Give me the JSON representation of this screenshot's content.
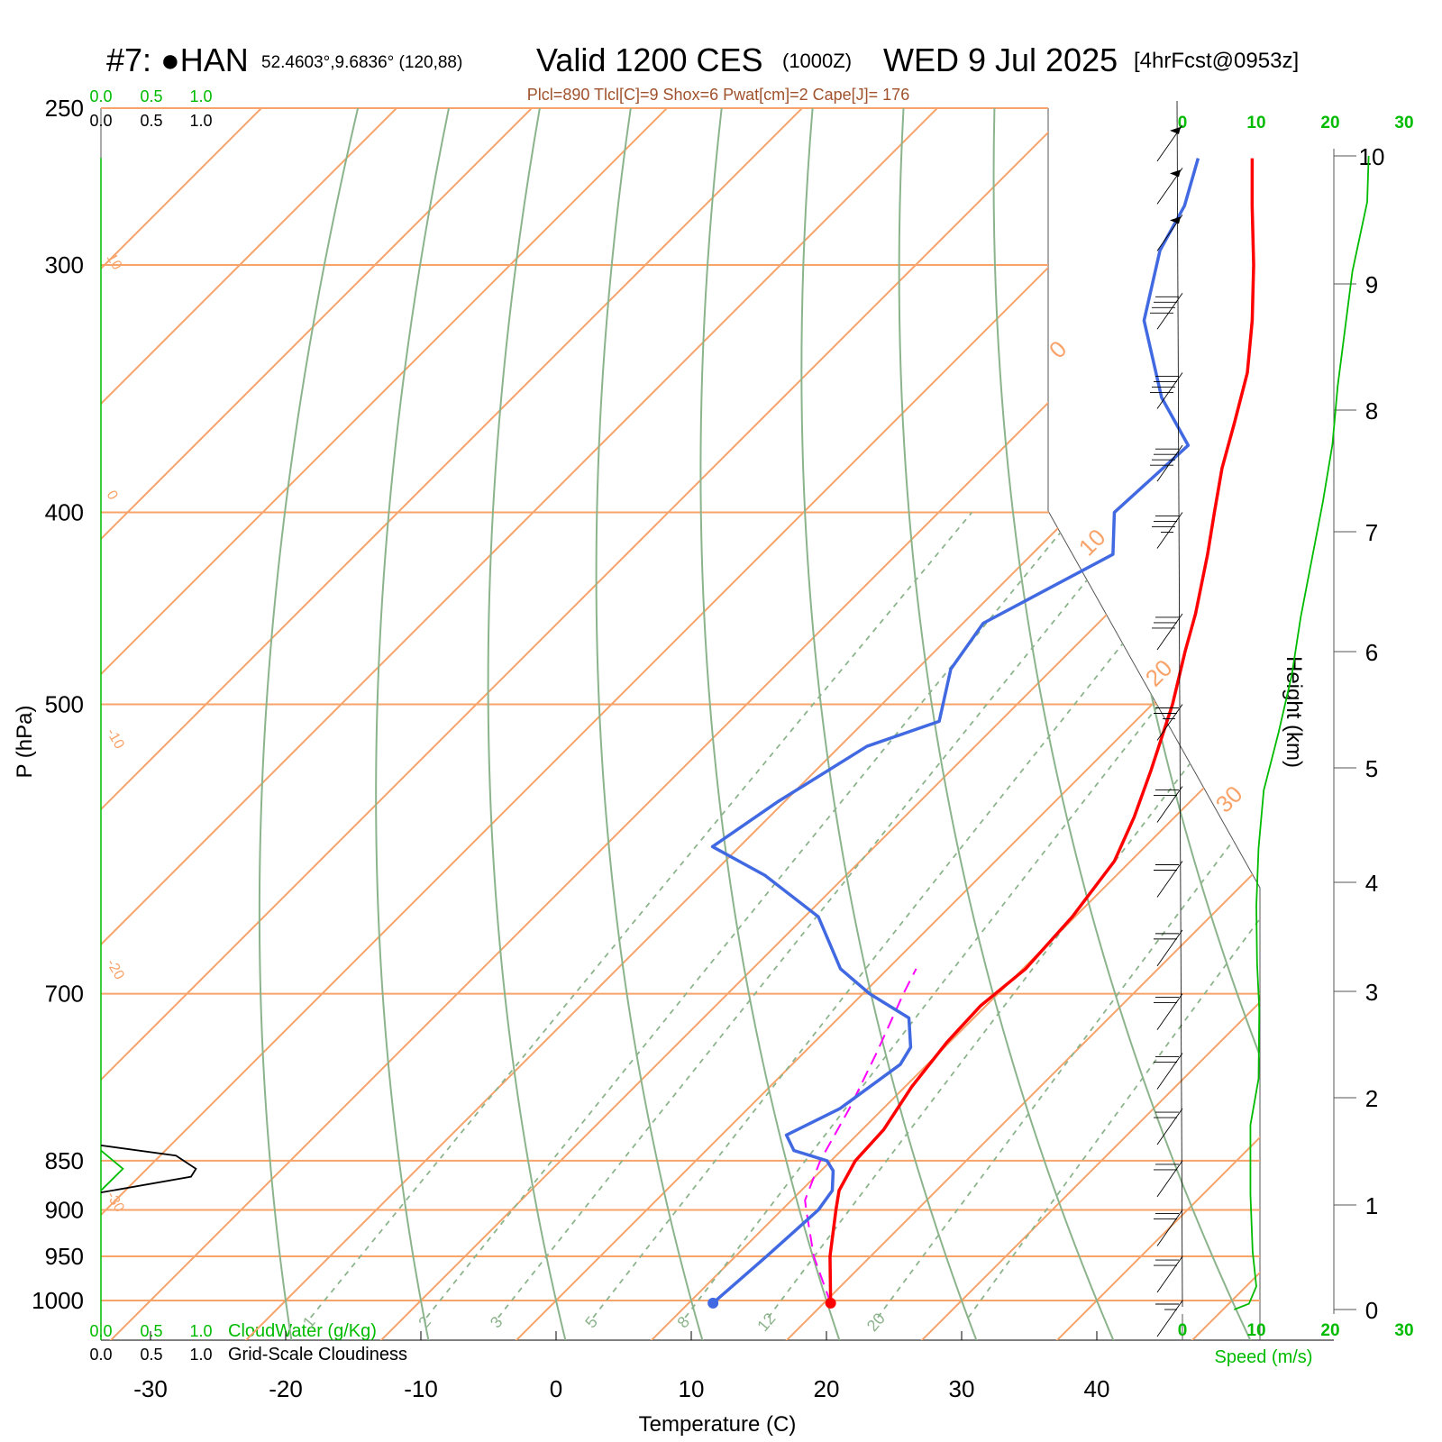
{
  "header": {
    "station": "#7: ●HAN",
    "coords": "52.4603°,9.6836° (120,88)",
    "valid": "Valid 1200 CES",
    "zulu": "(1000Z)",
    "date": "WED 9 Jul 2025",
    "forecast": "[4hrFcst@0953z]",
    "indices": "Plcl=890 Tlcl[C]=9 Shox=6 Pwat[cm]=2 Cape[J]= 176"
  },
  "axes": {
    "pressure_label": "P (hPa)",
    "temperature_label": "Temperature (C)",
    "height_label": "Height (km)",
    "speed_label": "Speed (m/s)",
    "cloudwater_label": "CloudWater (g/Kg)",
    "cloudiness_label": "Grid-Scale Cloudiness"
  },
  "colors": {
    "temperature": "#ff0000",
    "dewpoint": "#4169e1",
    "parcel": "#ff00ff",
    "isotherm": "#f7a36a",
    "dry_adiabat": "#8cb48c",
    "mixing_ratio": "#8cb48c",
    "wind_speed": "#00bb00",
    "indices_text": "#a0522d"
  },
  "chart_data": {
    "type": "skew-t log-p",
    "pressure_ticks": [
      "250",
      "300",
      "400",
      "500",
      "700",
      "850",
      "900",
      "950",
      "1000"
    ],
    "temperature_ticks": [
      "-30",
      "-20",
      "-10",
      "0",
      "10",
      "20",
      "30",
      "40"
    ],
    "height_ticks_km": [
      "0",
      "1",
      "2",
      "3",
      "4",
      "5",
      "6",
      "7",
      "8",
      "9",
      "10"
    ],
    "speed_ticks_ms": [
      "0",
      "10",
      "20",
      "30"
    ],
    "cloud_scale_ticks": [
      "0.0",
      "0.5",
      "1.0"
    ],
    "isotherm_labels": [
      "10",
      "0",
      "-10",
      "-20",
      "-30",
      "0",
      "10",
      "20",
      "30"
    ],
    "mixing_ratio_labels": [
      "1",
      "2",
      "3",
      "5",
      "8",
      "12",
      "20"
    ],
    "temperature_profile": [
      {
        "p": 1003,
        "t": 20.5
      },
      {
        "p": 950,
        "t": 17.0
      },
      {
        "p": 900,
        "t": 14.0
      },
      {
        "p": 880,
        "t": 12.8
      },
      {
        "p": 850,
        "t": 11.8
      },
      {
        "p": 820,
        "t": 11.6
      },
      {
        "p": 780,
        "t": 10.5
      },
      {
        "p": 740,
        "t": 9.8
      },
      {
        "p": 710,
        "t": 9.6
      },
      {
        "p": 680,
        "t": 10.2
      },
      {
        "p": 640,
        "t": 9.8
      },
      {
        "p": 600,
        "t": 8.8
      },
      {
        "p": 570,
        "t": 7.0
      },
      {
        "p": 540,
        "t": 4.8
      },
      {
        "p": 500,
        "t": 1.5
      },
      {
        "p": 470,
        "t": -1.5
      },
      {
        "p": 450,
        "t": -3.5
      },
      {
        "p": 420,
        "t": -7.0
      },
      {
        "p": 400,
        "t": -9.6
      },
      {
        "p": 380,
        "t": -12.3
      },
      {
        "p": 360,
        "t": -14.8
      },
      {
        "p": 340,
        "t": -17.5
      },
      {
        "p": 320,
        "t": -21.0
      },
      {
        "p": 300,
        "t": -25.0
      },
      {
        "p": 280,
        "t": -29.5
      },
      {
        "p": 265,
        "t": -33.0
      }
    ],
    "dewpoint_profile": [
      {
        "p": 1003,
        "t": 11.8
      },
      {
        "p": 950,
        "t": 12.3
      },
      {
        "p": 900,
        "t": 12.7
      },
      {
        "p": 880,
        "t": 12.3
      },
      {
        "p": 860,
        "t": 10.9
      },
      {
        "p": 850,
        "t": 9.7
      },
      {
        "p": 840,
        "t": 6.5
      },
      {
        "p": 825,
        "t": 4.8
      },
      {
        "p": 800,
        "t": 6.8
      },
      {
        "p": 760,
        "t": 8.0
      },
      {
        "p": 745,
        "t": 7.5
      },
      {
        "p": 720,
        "t": 5.2
      },
      {
        "p": 700,
        "t": 0.5
      },
      {
        "p": 680,
        "t": -3.5
      },
      {
        "p": 640,
        "t": -9.0
      },
      {
        "p": 610,
        "t": -16.0
      },
      {
        "p": 590,
        "t": -22.0
      },
      {
        "p": 560,
        "t": -20.5
      },
      {
        "p": 525,
        "t": -18.0
      },
      {
        "p": 510,
        "t": -14.5
      },
      {
        "p": 480,
        "t": -17.5
      },
      {
        "p": 455,
        "t": -18.5
      },
      {
        "p": 420,
        "t": -14.0
      },
      {
        "p": 400,
        "t": -17.0
      },
      {
        "p": 370,
        "t": -16.5
      },
      {
        "p": 350,
        "t": -22.0
      },
      {
        "p": 320,
        "t": -29.0
      },
      {
        "p": 295,
        "t": -33.0
      },
      {
        "p": 280,
        "t": -34.5
      },
      {
        "p": 265,
        "t": -37.0
      }
    ],
    "parcel_path": [
      {
        "p": 1003,
        "t": 20.5
      },
      {
        "p": 950,
        "t": 15.8
      },
      {
        "p": 900,
        "t": 11.8
      },
      {
        "p": 890,
        "t": 11.0
      },
      {
        "p": 850,
        "t": 9.2
      },
      {
        "p": 800,
        "t": 7.5
      },
      {
        "p": 750,
        "t": 5.4
      },
      {
        "p": 700,
        "t": 3.0
      },
      {
        "p": 680,
        "t": 2.1
      }
    ],
    "wind_speed_profile": [
      {
        "h": 0.0,
        "s": 7
      },
      {
        "h": 0.05,
        "s": 9
      },
      {
        "h": 0.2,
        "s": 10
      },
      {
        "h": 0.5,
        "s": 9.5
      },
      {
        "h": 1.0,
        "s": 9.2
      },
      {
        "h": 1.6,
        "s": 9.2
      },
      {
        "h": 2.0,
        "s": 10.3
      },
      {
        "h": 2.6,
        "s": 10.4
      },
      {
        "h": 3.0,
        "s": 10.1
      },
      {
        "h": 3.5,
        "s": 10
      },
      {
        "h": 4.0,
        "s": 10.3
      },
      {
        "h": 4.5,
        "s": 11
      },
      {
        "h": 5.0,
        "s": 13
      },
      {
        "h": 5.5,
        "s": 14.8
      },
      {
        "h": 6.0,
        "s": 16
      },
      {
        "h": 7.0,
        "s": 19
      },
      {
        "h": 7.5,
        "s": 20.3
      },
      {
        "h": 8.0,
        "s": 21
      },
      {
        "h": 9.0,
        "s": 23
      },
      {
        "h": 9.6,
        "s": 25
      },
      {
        "h": 10.0,
        "s": 25.2
      }
    ],
    "cloudiness_profile": [
      {
        "p": 835,
        "v": 0.0
      },
      {
        "p": 845,
        "v": 0.75
      },
      {
        "p": 858,
        "v": 0.95
      },
      {
        "p": 866,
        "v": 0.9
      },
      {
        "p": 882,
        "v": 0.0
      }
    ],
    "cloudwater_profile": [
      {
        "p": 840,
        "v": 0.0
      },
      {
        "p": 858,
        "v": 0.22
      },
      {
        "p": 880,
        "v": 0.0
      }
    ],
    "wind_barbs": [
      {
        "p": 255,
        "speed": 50,
        "dir": 290
      },
      {
        "p": 268,
        "speed": 50,
        "dir": 290
      },
      {
        "p": 283,
        "speed": 50,
        "dir": 290
      },
      {
        "p": 310,
        "speed": 40,
        "dir": 280
      },
      {
        "p": 340,
        "speed": 40,
        "dir": 280
      },
      {
        "p": 370,
        "speed": 40,
        "dir": 280
      },
      {
        "p": 400,
        "speed": 35,
        "dir": 280
      },
      {
        "p": 450,
        "speed": 30,
        "dir": 280
      },
      {
        "p": 500,
        "speed": 25,
        "dir": 280
      },
      {
        "p": 550,
        "speed": 20,
        "dir": 275
      },
      {
        "p": 600,
        "speed": 20,
        "dir": 270
      },
      {
        "p": 650,
        "speed": 20,
        "dir": 270
      },
      {
        "p": 700,
        "speed": 20,
        "dir": 265
      },
      {
        "p": 750,
        "speed": 20,
        "dir": 260
      },
      {
        "p": 800,
        "speed": 20,
        "dir": 255
      },
      {
        "p": 850,
        "speed": 20,
        "dir": 250
      },
      {
        "p": 900,
        "speed": 20,
        "dir": 245
      },
      {
        "p": 950,
        "speed": 20,
        "dir": 240
      },
      {
        "p": 1000,
        "speed": 15,
        "dir": 230
      }
    ]
  }
}
